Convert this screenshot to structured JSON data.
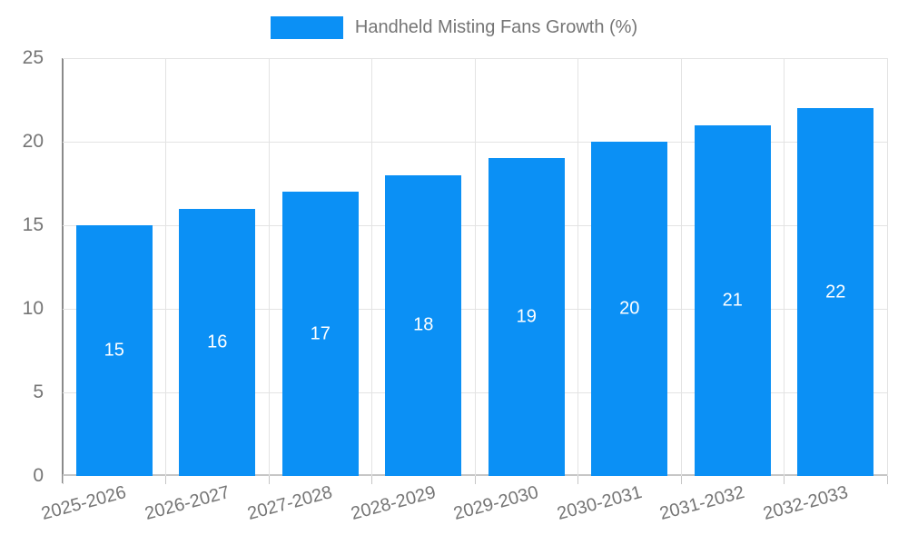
{
  "legend": {
    "label": "Handheld Misting Fans Growth (%)"
  },
  "chart_data": {
    "type": "bar",
    "title": "Handheld Misting Fans Growth (%)",
    "categories": [
      "2025-2026",
      "2026-2027",
      "2027-2028",
      "2028-2029",
      "2029-2030",
      "2030-2031",
      "2031-2032",
      "2032-2033"
    ],
    "values": [
      15,
      16,
      17,
      18,
      19,
      20,
      21,
      22
    ],
    "xlabel": "",
    "ylabel": "",
    "ylim": [
      0,
      25
    ],
    "yticks": [
      0,
      5,
      10,
      15,
      20,
      25
    ],
    "grid": true,
    "legend_position": "top",
    "bar_color": "#0b90f5",
    "bar_label_color": "#ffffff",
    "axis_color": "#8a8a8a",
    "grid_color": "#e3e3e3",
    "tick_label_color": "#757575"
  }
}
